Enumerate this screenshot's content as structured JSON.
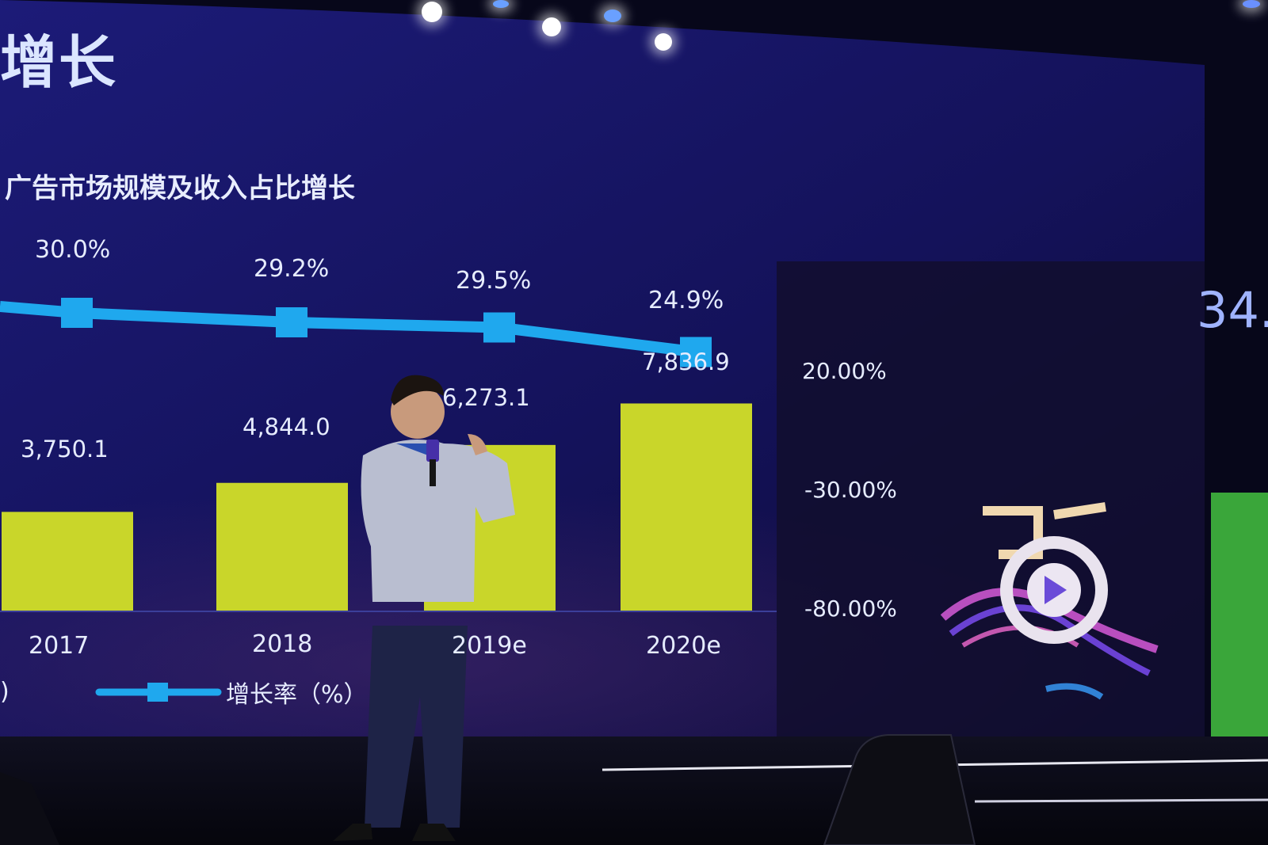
{
  "slide": {
    "title": "增长",
    "subtitle": "广告市场规模及收入占比增长",
    "legend_label": "增长率（%）",
    "legend_left_fragment": ")",
    "right_fragment": "34.",
    "colors": {
      "bar": "#c9d62a",
      "line": "#1fa8ee",
      "screen": "#161466"
    }
  },
  "chart_data": {
    "type": "bar",
    "categories": [
      "2017",
      "2018",
      "2019e",
      "2020e"
    ],
    "series": [
      {
        "values": [
          3750.1,
          4844.0,
          6273.1,
          7836.9
        ]
      },
      {
        "name": "增长率（%）",
        "type": "line",
        "values": [
          30.0,
          29.2,
          29.5,
          24.9
        ]
      }
    ],
    "value_labels": [
      "3,750.1",
      "4,844.0",
      "6,273.1",
      "7,836.9"
    ],
    "rate_labels": [
      "30.0%",
      "29.2%",
      "29.5%",
      "24.9%"
    ],
    "year_labels": [
      "2017",
      "2018",
      "2019e",
      "2020e"
    ],
    "right_axis_ticks": [
      "20.00%",
      "-30.00%",
      "-80.00%"
    ]
  }
}
